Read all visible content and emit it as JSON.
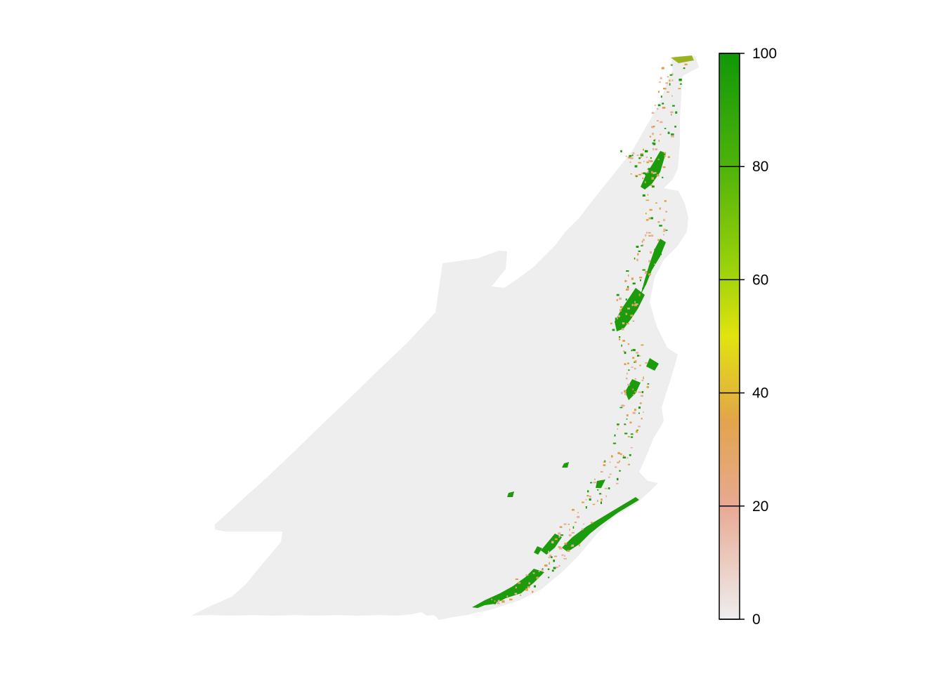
{
  "legend": {
    "min": 0,
    "max": 100,
    "ticks": [
      {
        "value": 0,
        "label": "0"
      },
      {
        "value": 20,
        "label": "20"
      },
      {
        "value": 40,
        "label": "40"
      },
      {
        "value": 60,
        "label": "60"
      },
      {
        "value": 80,
        "label": "80"
      },
      {
        "value": 100,
        "label": "100"
      }
    ],
    "color_stops": [
      {
        "value": 0,
        "color": "#eeeeee"
      },
      {
        "value": 20,
        "color": "#e8a993"
      },
      {
        "value": 35,
        "color": "#e2a44b"
      },
      {
        "value": 50,
        "color": "#e1e30f"
      },
      {
        "value": 62,
        "color": "#9bd20b"
      },
      {
        "value": 80,
        "color": "#4fb30b"
      },
      {
        "value": 100,
        "color": "#109808"
      }
    ]
  },
  "map": {
    "background_color": "#eeeeee",
    "high_value_color": "#1c9c0c",
    "mid_value_color": "#dfa24c",
    "low_value_color": "#e8b09a"
  }
}
